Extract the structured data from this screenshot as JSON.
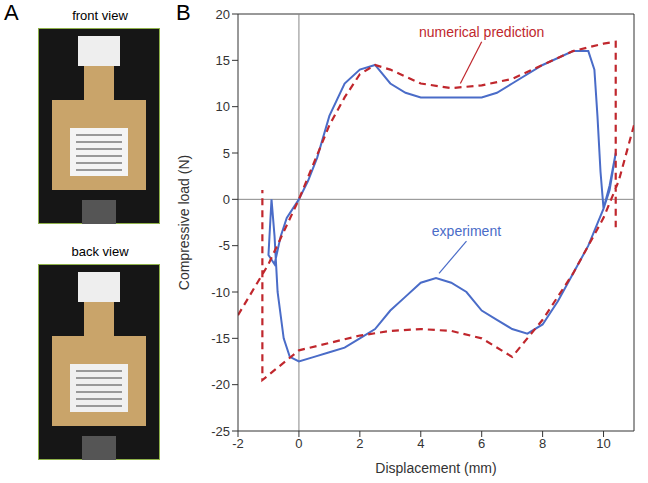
{
  "panel_a": {
    "letter": "A",
    "captions": [
      "front view",
      "back view"
    ]
  },
  "panel_b": {
    "letter": "B"
  },
  "chart_data": {
    "type": "line",
    "x_label": "Displacement (mm)",
    "y_label": "Compressive load (N)",
    "xlim": [
      -2,
      11
    ],
    "xticks": [
      -2,
      0,
      2,
      4,
      6,
      8,
      10
    ],
    "ylim": [
      -25,
      20
    ],
    "yticks": [
      -25,
      -20,
      -15,
      -10,
      -5,
      0,
      5,
      10,
      15,
      20
    ],
    "reference_lines": {
      "x": [
        0
      ],
      "y": [
        0
      ]
    },
    "series": [
      {
        "name": "experiment",
        "color": "#4a6cc8",
        "line_style": "solid",
        "x": [
          0,
          0.3,
          0.6,
          1,
          1.5,
          2,
          2.5,
          3,
          3.5,
          4,
          5,
          6,
          6.5,
          7,
          8,
          9,
          9.5,
          9.7,
          9.8,
          9.9,
          10,
          10.2,
          10.4,
          10.2,
          10,
          9.5,
          9,
          8.5,
          8,
          7.5,
          7,
          6.5,
          6,
          5.5,
          5,
          4.5,
          4,
          3.5,
          3,
          2.5,
          2,
          1.5,
          1,
          0.5,
          0,
          -0.3,
          -0.5,
          -0.7,
          -0.8,
          -0.9,
          -1,
          -0.8,
          -0.6,
          -0.4,
          -0.2,
          0
        ],
        "values": [
          0,
          2,
          4.5,
          9,
          12.5,
          14,
          14.5,
          12.5,
          11.5,
          11,
          11,
          11,
          11.5,
          12.5,
          14.5,
          16,
          16,
          14,
          9,
          3,
          -1,
          1,
          5,
          1.5,
          -1,
          -5,
          -8,
          -11,
          -13.5,
          -14.5,
          -14,
          -13,
          -12,
          -10,
          -9,
          -8.5,
          -9,
          -10.5,
          -12,
          -14,
          -15,
          -16,
          -16.5,
          -17,
          -17.5,
          -17,
          -15,
          -10,
          -4,
          0,
          -6,
          -7,
          -4,
          -2,
          -1,
          0
        ]
      },
      {
        "name": "numerical prediction",
        "color": "#c0272d",
        "line_style": "dashed",
        "x": [
          -2,
          -1,
          0,
          0.5,
          1,
          1.5,
          2,
          2.5,
          3,
          4,
          5,
          6,
          7,
          8,
          9,
          10,
          10.4,
          10.4,
          10.4,
          11,
          10.5,
          10,
          9,
          8,
          7,
          6,
          5,
          4,
          3,
          2,
          1,
          0,
          -1.2,
          -1.2
        ],
        "values": [
          -12.5,
          -7,
          0,
          4,
          8,
          11,
          13.5,
          14.5,
          14,
          12.5,
          12,
          12.3,
          13,
          14.5,
          16,
          16.8,
          17,
          -3,
          null,
          8,
          2,
          -2,
          -8,
          -13,
          -17,
          -15,
          -14.2,
          -14,
          -14.2,
          -14.7,
          -15.5,
          -16.3,
          -19.5,
          1
        ]
      }
    ],
    "annotations": [
      {
        "text": "numerical prediction",
        "x": 6,
        "y": 17,
        "arrow_to": [
          5.3,
          12.5
        ],
        "color": "#c0272d"
      },
      {
        "text": "experiment",
        "x": 5.5,
        "y": -4.5,
        "arrow_to": [
          4.6,
          -8
        ],
        "color": "#4a6cc8"
      }
    ]
  }
}
